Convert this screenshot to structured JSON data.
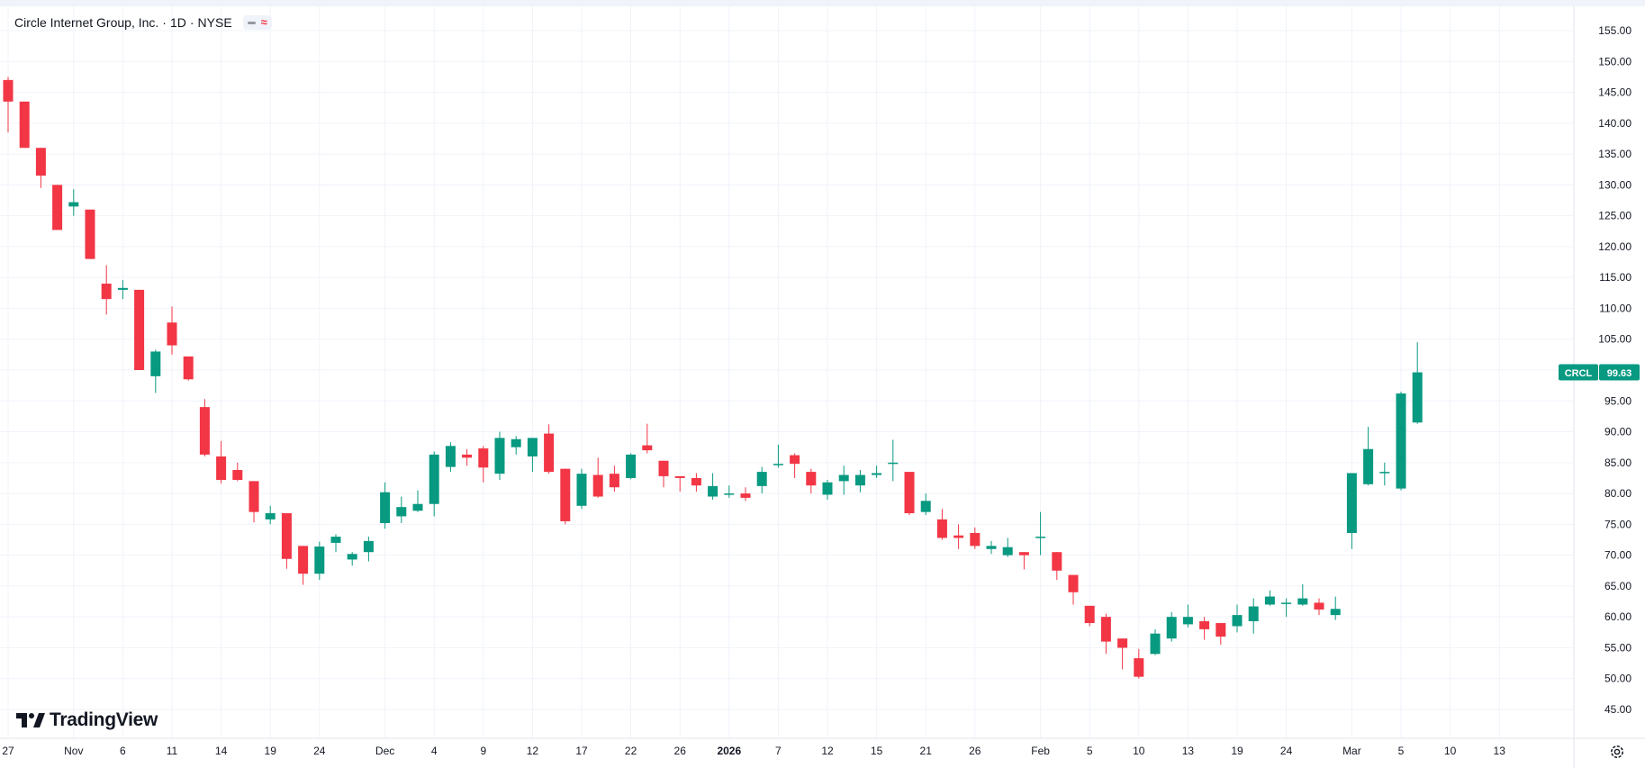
{
  "legend": {
    "symbol_name": "Circle Internet Group, Inc.",
    "interval": "1D",
    "exchange": "NYSE",
    "separator": "·",
    "indicator_icons": [
      "minus-icon",
      "approx-icon"
    ]
  },
  "brand": {
    "name": "TradingView",
    "icon": "tradingview-logo-icon"
  },
  "settings_icon": "gear-icon",
  "colors": {
    "up": "#089981",
    "down": "#f23645",
    "grid": "#f0f3fa",
    "axis_text": "#131722",
    "background": "#ffffff"
  },
  "chart_data": {
    "type": "candlestick",
    "ticker": "CRCL",
    "last_price_label": "99.63",
    "price_axis_ticks": [
      "45.00",
      "50.00",
      "55.00",
      "60.00",
      "65.00",
      "70.00",
      "75.00",
      "80.00",
      "85.00",
      "90.00",
      "95.00",
      "100.00",
      "105.00",
      "110.00",
      "115.00",
      "120.00",
      "125.00",
      "130.00",
      "135.00",
      "140.00",
      "145.00",
      "150.00",
      "155.00"
    ],
    "ylim": [
      41,
      158
    ],
    "time_axis_labels": [
      {
        "label": "27",
        "index": 0
      },
      {
        "label": "Nov",
        "index": 4
      },
      {
        "label": "6",
        "index": 7
      },
      {
        "label": "11",
        "index": 10
      },
      {
        "label": "14",
        "index": 13
      },
      {
        "label": "19",
        "index": 16
      },
      {
        "label": "24",
        "index": 19
      },
      {
        "label": "Dec",
        "index": 23
      },
      {
        "label": "4",
        "index": 26
      },
      {
        "label": "9",
        "index": 29
      },
      {
        "label": "12",
        "index": 32
      },
      {
        "label": "17",
        "index": 35
      },
      {
        "label": "22",
        "index": 38
      },
      {
        "label": "26",
        "index": 41
      },
      {
        "label": "2026",
        "index": 44
      },
      {
        "label": "7",
        "index": 47
      },
      {
        "label": "12",
        "index": 50
      },
      {
        "label": "15",
        "index": 53
      },
      {
        "label": "21",
        "index": 56
      },
      {
        "label": "26",
        "index": 59
      },
      {
        "label": "Feb",
        "index": 63
      },
      {
        "label": "5",
        "index": 66
      },
      {
        "label": "10",
        "index": 69
      },
      {
        "label": "13",
        "index": 72
      },
      {
        "label": "19",
        "index": 75
      },
      {
        "label": "24",
        "index": 78
      },
      {
        "label": "Mar",
        "index": 82
      },
      {
        "label": "5",
        "index": 85
      },
      {
        "label": "10",
        "index": 88
      },
      {
        "label": "13",
        "index": 91
      }
    ],
    "candles": [
      {
        "o": 147.0,
        "h": 147.5,
        "l": 138.5,
        "c": 143.5
      },
      {
        "o": 143.5,
        "h": 143.5,
        "l": 136.0,
        "c": 136.0
      },
      {
        "o": 136.0,
        "h": 136.0,
        "l": 129.5,
        "c": 131.5
      },
      {
        "o": 130.0,
        "h": 130.0,
        "l": 122.7,
        "c": 122.7
      },
      {
        "o": 126.5,
        "h": 129.3,
        "l": 125.0,
        "c": 127.2
      },
      {
        "o": 126.0,
        "h": 126.0,
        "l": 118.0,
        "c": 118.0
      },
      {
        "o": 114.0,
        "h": 117.0,
        "l": 109.0,
        "c": 111.5
      },
      {
        "o": 113.0,
        "h": 114.6,
        "l": 111.5,
        "c": 113.3
      },
      {
        "o": 113.0,
        "h": 113.0,
        "l": 100.0,
        "c": 100.0
      },
      {
        "o": 99.0,
        "h": 103.3,
        "l": 96.3,
        "c": 103.0
      },
      {
        "o": 107.7,
        "h": 110.3,
        "l": 102.5,
        "c": 104.0
      },
      {
        "o": 102.2,
        "h": 102.2,
        "l": 98.3,
        "c": 98.5
      },
      {
        "o": 94.0,
        "h": 95.3,
        "l": 86.0,
        "c": 86.3
      },
      {
        "o": 86.0,
        "h": 88.5,
        "l": 81.6,
        "c": 82.2
      },
      {
        "o": 83.8,
        "h": 85.0,
        "l": 82.0,
        "c": 82.2
      },
      {
        "o": 82.0,
        "h": 82.0,
        "l": 75.3,
        "c": 77.0
      },
      {
        "o": 75.8,
        "h": 78.0,
        "l": 75.0,
        "c": 76.8
      },
      {
        "o": 76.8,
        "h": 76.8,
        "l": 67.8,
        "c": 69.4
      },
      {
        "o": 71.5,
        "h": 71.5,
        "l": 65.2,
        "c": 67.0
      },
      {
        "o": 67.0,
        "h": 72.2,
        "l": 66.0,
        "c": 71.4
      },
      {
        "o": 72.0,
        "h": 73.4,
        "l": 70.5,
        "c": 73.0
      },
      {
        "o": 69.3,
        "h": 70.5,
        "l": 68.3,
        "c": 70.2
      },
      {
        "o": 70.5,
        "h": 73.0,
        "l": 69.0,
        "c": 72.3
      },
      {
        "o": 75.2,
        "h": 81.8,
        "l": 74.3,
        "c": 80.2
      },
      {
        "o": 76.3,
        "h": 79.5,
        "l": 75.2,
        "c": 77.8
      },
      {
        "o": 77.2,
        "h": 80.5,
        "l": 77.0,
        "c": 78.3
      },
      {
        "o": 78.3,
        "h": 86.8,
        "l": 76.3,
        "c": 86.3
      },
      {
        "o": 84.3,
        "h": 88.3,
        "l": 83.5,
        "c": 87.7
      },
      {
        "o": 86.3,
        "h": 87.2,
        "l": 84.5,
        "c": 85.8
      },
      {
        "o": 87.3,
        "h": 87.7,
        "l": 81.8,
        "c": 84.2
      },
      {
        "o": 83.2,
        "h": 90.0,
        "l": 82.2,
        "c": 89.0
      },
      {
        "o": 87.5,
        "h": 89.3,
        "l": 86.3,
        "c": 88.8
      },
      {
        "o": 86.0,
        "h": 89.0,
        "l": 83.5,
        "c": 89.0
      },
      {
        "o": 89.7,
        "h": 91.2,
        "l": 83.2,
        "c": 83.5
      },
      {
        "o": 84.0,
        "h": 84.0,
        "l": 75.0,
        "c": 75.5
      },
      {
        "o": 78.0,
        "h": 84.0,
        "l": 77.5,
        "c": 83.2
      },
      {
        "o": 83.0,
        "h": 85.8,
        "l": 79.3,
        "c": 79.5
      },
      {
        "o": 83.2,
        "h": 84.5,
        "l": 80.3,
        "c": 81.0
      },
      {
        "o": 82.5,
        "h": 86.5,
        "l": 82.3,
        "c": 86.3
      },
      {
        "o": 87.8,
        "h": 91.3,
        "l": 86.5,
        "c": 87.0
      },
      {
        "o": 85.3,
        "h": 85.3,
        "l": 81.0,
        "c": 82.8
      },
      {
        "o": 82.8,
        "h": 82.8,
        "l": 80.3,
        "c": 82.5
      },
      {
        "o": 82.5,
        "h": 83.3,
        "l": 80.3,
        "c": 81.3
      },
      {
        "o": 79.5,
        "h": 83.3,
        "l": 79.0,
        "c": 81.2
      },
      {
        "o": 80.0,
        "h": 81.3,
        "l": 79.3,
        "c": 80.0
      },
      {
        "o": 80.0,
        "h": 81.0,
        "l": 78.8,
        "c": 79.3
      },
      {
        "o": 81.2,
        "h": 84.3,
        "l": 80.0,
        "c": 83.5
      },
      {
        "o": 84.8,
        "h": 87.9,
        "l": 84.2,
        "c": 84.8
      },
      {
        "o": 86.2,
        "h": 86.5,
        "l": 82.5,
        "c": 84.8
      },
      {
        "o": 83.5,
        "h": 84.0,
        "l": 80.0,
        "c": 81.3
      },
      {
        "o": 79.8,
        "h": 82.2,
        "l": 79.0,
        "c": 81.8
      },
      {
        "o": 82.0,
        "h": 84.5,
        "l": 79.8,
        "c": 83.0
      },
      {
        "o": 81.3,
        "h": 83.8,
        "l": 80.2,
        "c": 83.0
      },
      {
        "o": 83.0,
        "h": 84.5,
        "l": 82.5,
        "c": 83.3
      },
      {
        "o": 85.0,
        "h": 88.7,
        "l": 82.0,
        "c": 85.0
      },
      {
        "o": 83.5,
        "h": 83.5,
        "l": 76.5,
        "c": 76.8
      },
      {
        "o": 77.0,
        "h": 80.0,
        "l": 76.5,
        "c": 78.8
      },
      {
        "o": 75.8,
        "h": 77.5,
        "l": 72.5,
        "c": 72.8
      },
      {
        "o": 73.2,
        "h": 75.0,
        "l": 71.0,
        "c": 72.8
      },
      {
        "o": 73.6,
        "h": 74.5,
        "l": 71.0,
        "c": 71.5
      },
      {
        "o": 71.0,
        "h": 72.3,
        "l": 70.2,
        "c": 71.5
      },
      {
        "o": 70.0,
        "h": 72.8,
        "l": 69.7,
        "c": 71.3
      },
      {
        "o": 70.5,
        "h": 70.5,
        "l": 67.7,
        "c": 70.0
      },
      {
        "o": 73.0,
        "h": 77.0,
        "l": 70.0,
        "c": 73.0
      },
      {
        "o": 70.5,
        "h": 70.5,
        "l": 66.0,
        "c": 67.5
      },
      {
        "o": 66.8,
        "h": 66.8,
        "l": 62.0,
        "c": 64.0
      },
      {
        "o": 61.8,
        "h": 61.8,
        "l": 58.5,
        "c": 59.0
      },
      {
        "o": 60.0,
        "h": 60.5,
        "l": 54.0,
        "c": 56.0
      },
      {
        "o": 56.5,
        "h": 56.5,
        "l": 51.5,
        "c": 55.0
      },
      {
        "o": 53.3,
        "h": 54.8,
        "l": 50.0,
        "c": 50.3
      },
      {
        "o": 54.0,
        "h": 58.0,
        "l": 53.8,
        "c": 57.3
      },
      {
        "o": 56.5,
        "h": 60.8,
        "l": 56.0,
        "c": 60.0
      },
      {
        "o": 58.8,
        "h": 62.0,
        "l": 58.3,
        "c": 60.0
      },
      {
        "o": 59.3,
        "h": 60.0,
        "l": 56.3,
        "c": 58.0
      },
      {
        "o": 59.0,
        "h": 59.0,
        "l": 55.5,
        "c": 56.8
      },
      {
        "o": 58.5,
        "h": 62.0,
        "l": 57.5,
        "c": 60.3
      },
      {
        "o": 59.3,
        "h": 63.0,
        "l": 57.3,
        "c": 61.7
      },
      {
        "o": 62.0,
        "h": 64.3,
        "l": 61.8,
        "c": 63.3
      },
      {
        "o": 62.3,
        "h": 63.0,
        "l": 60.0,
        "c": 62.3
      },
      {
        "o": 62.0,
        "h": 65.3,
        "l": 61.8,
        "c": 63.0
      },
      {
        "o": 62.3,
        "h": 63.0,
        "l": 60.3,
        "c": 61.2
      },
      {
        "o": 60.3,
        "h": 63.3,
        "l": 59.5,
        "c": 61.3
      },
      {
        "o": 73.6,
        "h": 83.3,
        "l": 71.0,
        "c": 83.3
      },
      {
        "o": 81.5,
        "h": 90.8,
        "l": 81.3,
        "c": 87.2
      },
      {
        "o": 83.5,
        "h": 85.0,
        "l": 81.3,
        "c": 83.5
      },
      {
        "o": 80.8,
        "h": 96.5,
        "l": 80.5,
        "c": 96.2
      },
      {
        "o": 91.5,
        "h": 104.5,
        "l": 91.3,
        "c": 99.63
      }
    ]
  }
}
